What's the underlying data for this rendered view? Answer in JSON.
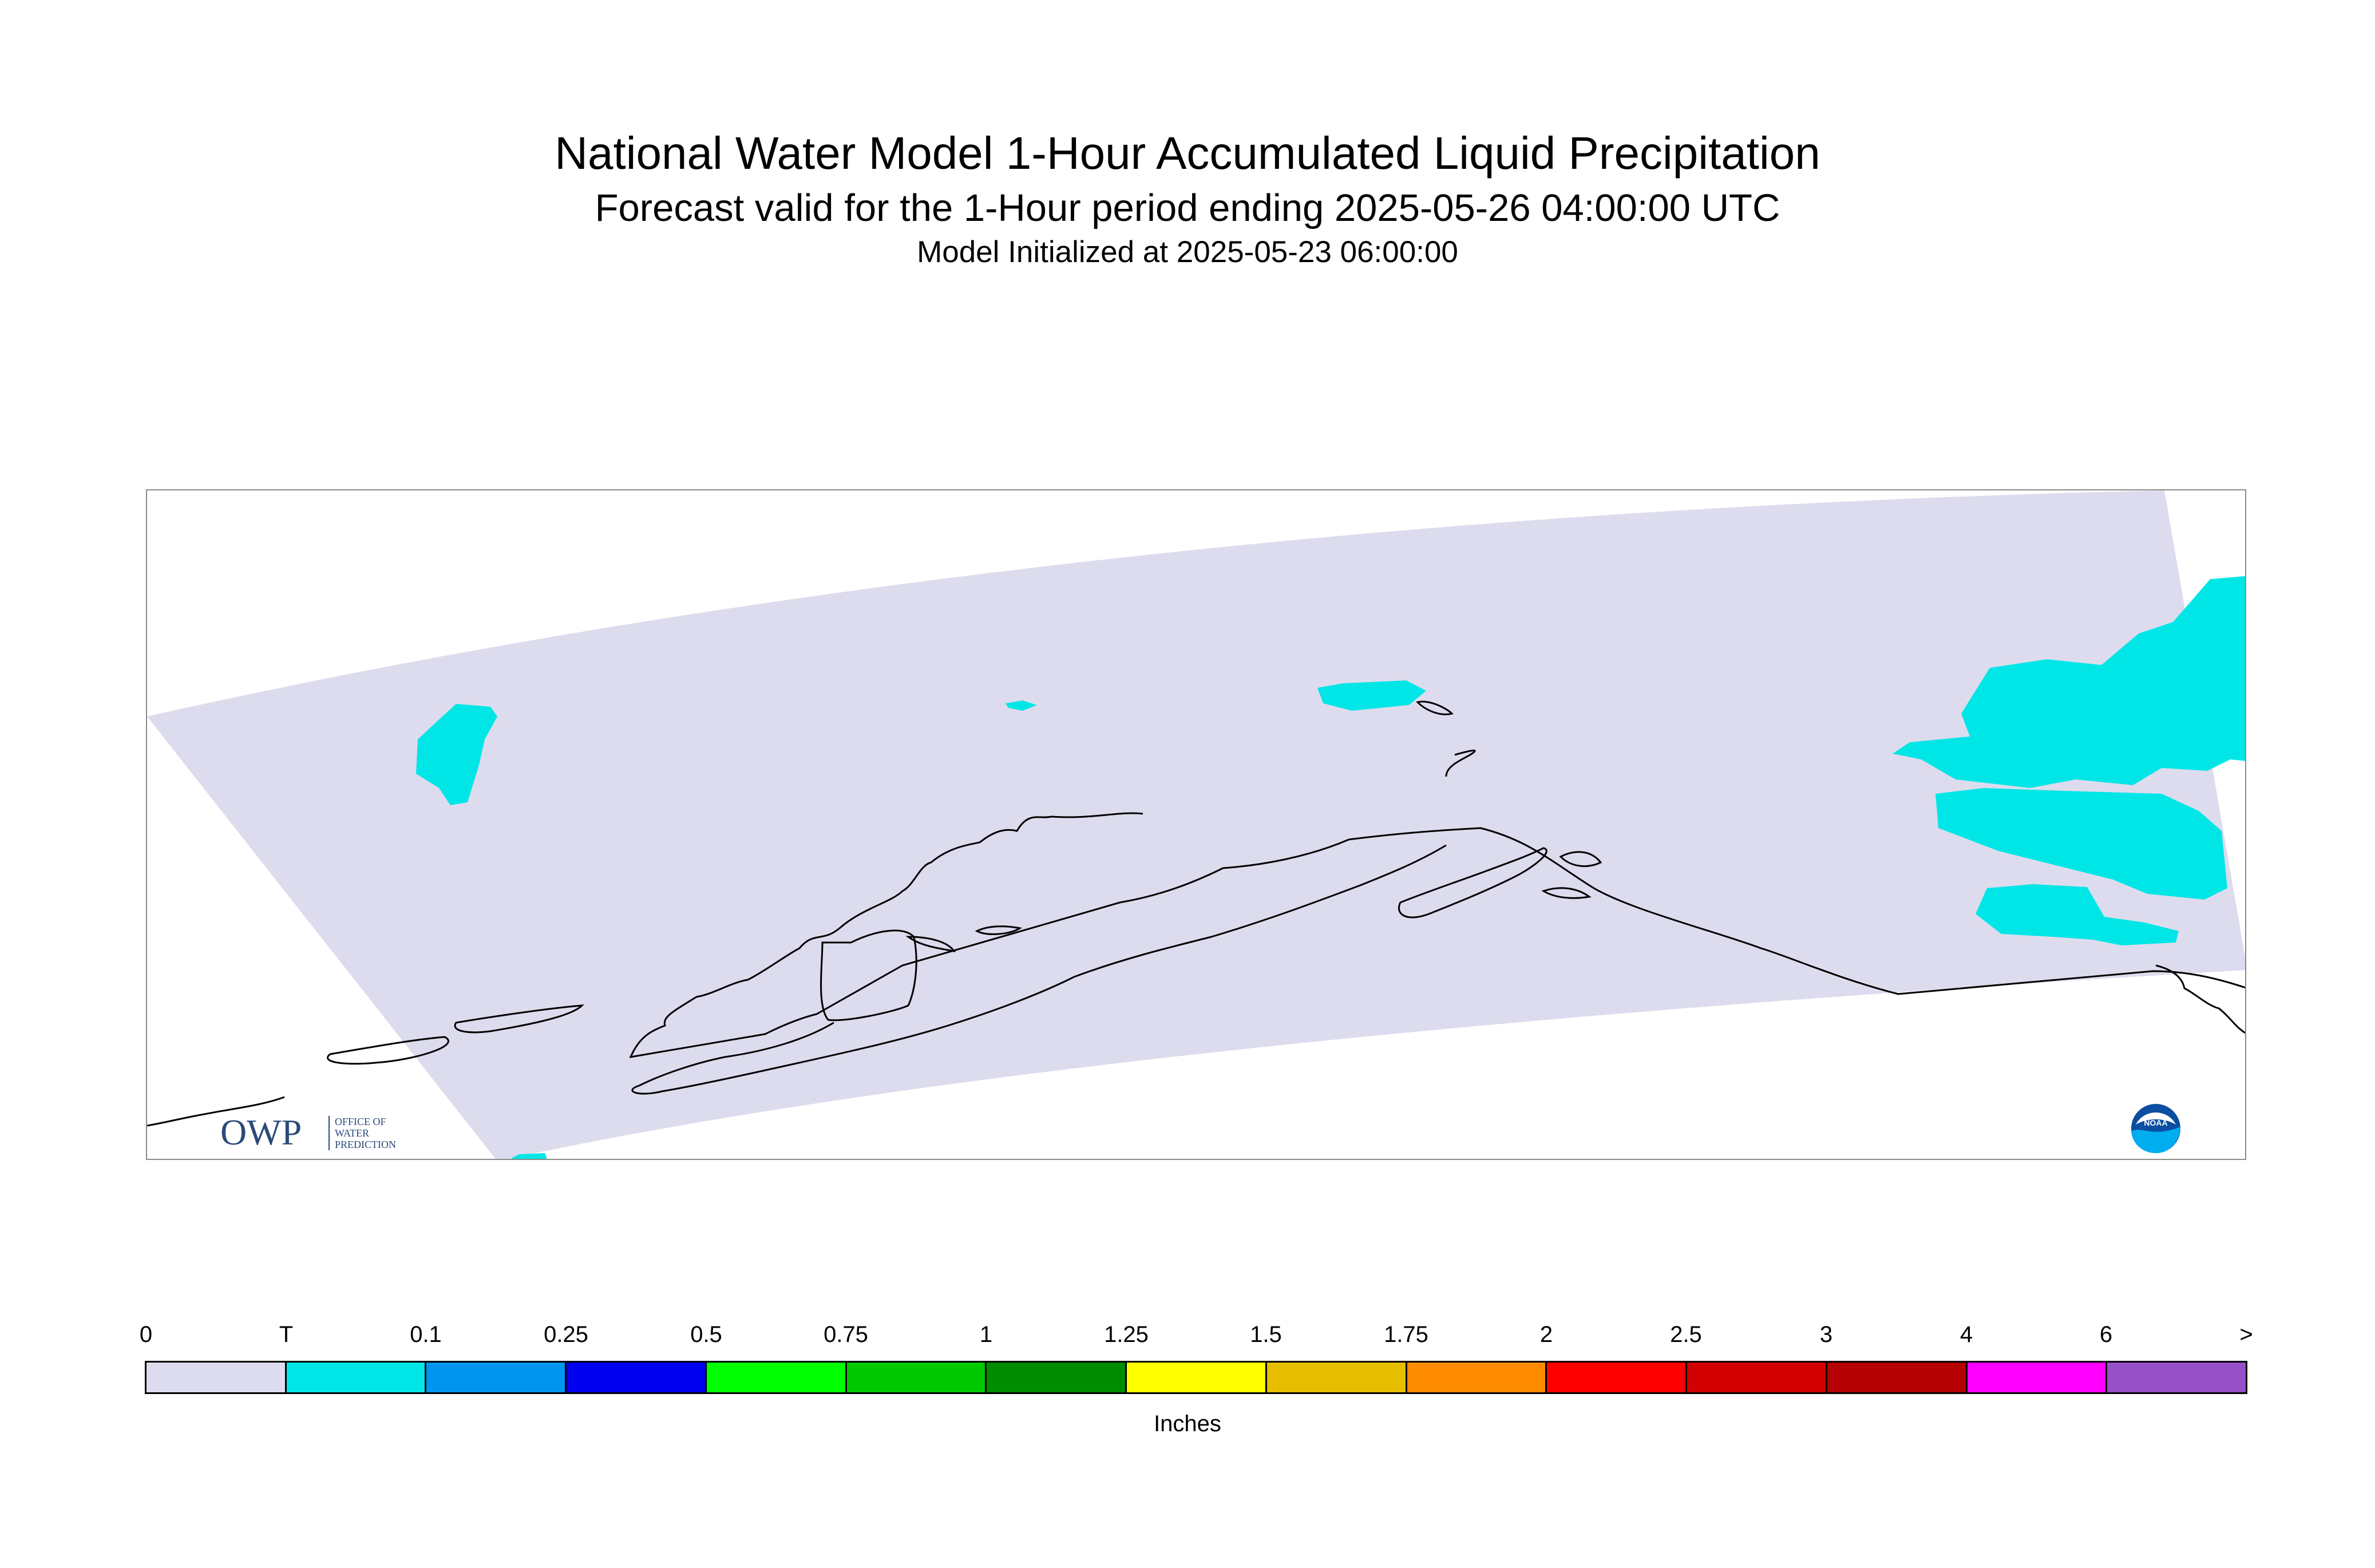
{
  "header": {
    "title": "National Water Model 1-Hour Accumulated Liquid Precipitation",
    "subtitle": "Forecast valid for the 1-Hour period ending 2025-05-26 04:00:00 UTC",
    "init_line": "Model Initialized at 2025-05-23 06:00:00"
  },
  "map": {
    "domain_color": "#dcdcee",
    "precip_color": "#00e6e6",
    "coastline_color": "#000000"
  },
  "logos": {
    "owp": {
      "mark": "OWP",
      "line1": "OFFICE OF",
      "line2": "WATER",
      "line3": "PREDICTION"
    },
    "noaa": {
      "text": "NOAA"
    }
  },
  "legend": {
    "unit": "Inches",
    "tick_labels": [
      "0",
      "T",
      "0.1",
      "0.25",
      "0.5",
      "0.75",
      "1",
      "1.25",
      "1.5",
      "1.75",
      "2",
      "2.5",
      "3",
      "4",
      "6",
      ">"
    ],
    "colors": [
      "#dcdcee",
      "#00e6e6",
      "#0096f0",
      "#0000f0",
      "#00ff00",
      "#00c800",
      "#008c00",
      "#ffff00",
      "#e6be00",
      "#ff8c00",
      "#ff0000",
      "#d20000",
      "#b40000",
      "#ff00ff",
      "#9650c8"
    ]
  }
}
